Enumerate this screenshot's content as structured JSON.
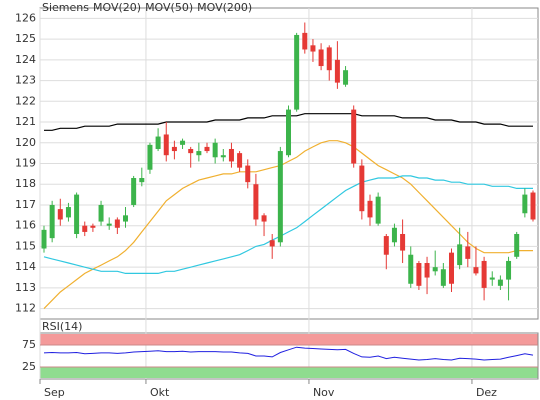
{
  "chart_data": [
    {
      "type": "candlestick",
      "categories": [
        "Sep",
        null,
        null,
        null,
        null,
        null,
        null,
        null,
        null,
        null,
        null,
        null,
        null,
        "Okt",
        null,
        null,
        null,
        null,
        null,
        null,
        null,
        null,
        null,
        null,
        null,
        null,
        null,
        null,
        null,
        null,
        null,
        null,
        null,
        "Nov",
        null,
        null,
        null,
        null,
        null,
        null,
        null,
        null,
        null,
        null,
        null,
        null,
        null,
        null,
        null,
        null,
        null,
        null,
        null,
        "Dez",
        null,
        null,
        null,
        null,
        null,
        null,
        null
      ],
      "name": "Siemens",
      "color": "#e05a5a",
      "up_color": "#3cb44b",
      "down_color": "#e53935",
      "open": [
        114.9,
        115.4,
        116.8,
        116.4,
        115.6,
        116.0,
        116.0,
        116.2,
        116.0,
        116.3,
        116.2,
        117.0,
        118.1,
        118.7,
        119.7,
        120.4,
        119.8,
        119.9,
        119.7,
        119.4,
        119.8,
        119.3,
        119.3,
        119.7,
        119.5,
        118.9,
        118.0,
        116.5,
        115.3,
        115.2,
        119.4,
        121.6,
        125.3,
        124.7,
        124.5,
        124.6,
        124.0,
        122.8,
        121.6,
        118.9,
        117.2,
        116.1,
        115.5,
        115.2,
        115.6,
        113.2,
        114.2,
        114.2,
        113.8,
        113.1,
        114.7,
        114.1,
        115.0,
        114.0,
        114.3,
        113.4,
        113.1,
        113.4,
        114.5,
        116.6,
        117.6
      ],
      "high": [
        116.0,
        117.2,
        117.3,
        117.1,
        117.6,
        116.2,
        116.1,
        117.2,
        116.4,
        116.4,
        116.9,
        118.4,
        118.8,
        120.0,
        120.7,
        121.0,
        120.1,
        120.2,
        119.8,
        120.0,
        120.0,
        120.2,
        119.7,
        120.0,
        119.6,
        119.2,
        118.5,
        116.6,
        115.6,
        119.8,
        121.8,
        125.3,
        125.8,
        125.0,
        124.8,
        124.7,
        124.9,
        123.7,
        121.8,
        119.2,
        117.5,
        117.6,
        115.6,
        116.1,
        116.3,
        115.0,
        114.3,
        114.5,
        114.8,
        114.2,
        114.9,
        115.9,
        115.7,
        115.0,
        114.5,
        113.8,
        113.6,
        114.5,
        115.7,
        117.8,
        117.7
      ],
      "low": [
        114.7,
        115.2,
        116.0,
        116.2,
        115.4,
        115.5,
        115.7,
        116.0,
        115.8,
        115.6,
        115.9,
        116.9,
        117.9,
        118.5,
        119.6,
        119.1,
        119.2,
        119.7,
        118.8,
        119.1,
        119.5,
        119.0,
        119.1,
        118.8,
        118.6,
        117.8,
        116.0,
        115.5,
        114.4,
        115.0,
        119.3,
        121.5,
        124.3,
        123.9,
        123.5,
        123.0,
        122.6,
        122.7,
        118.8,
        116.3,
        116.0,
        116.0,
        113.9,
        115.0,
        114.2,
        113.0,
        112.9,
        112.7,
        113.6,
        113.0,
        112.8,
        113.9,
        114.0,
        113.6,
        112.4,
        113.1,
        112.9,
        112.4,
        114.4,
        116.4,
        116.2
      ],
      "close": [
        115.8,
        117.0,
        116.3,
        116.9,
        117.5,
        115.7,
        115.9,
        117.0,
        116.1,
        115.9,
        116.5,
        118.3,
        118.3,
        119.9,
        120.3,
        119.4,
        119.6,
        120.1,
        119.5,
        119.6,
        119.6,
        120.0,
        119.4,
        119.1,
        118.8,
        118.1,
        116.3,
        116.2,
        115.0,
        119.6,
        121.6,
        125.2,
        124.5,
        124.4,
        123.7,
        123.5,
        122.9,
        123.5,
        119.0,
        116.7,
        116.4,
        117.4,
        114.6,
        115.9,
        114.8,
        114.6,
        113.1,
        113.5,
        114.0,
        113.9,
        113.2,
        115.1,
        114.4,
        113.7,
        113.0,
        113.5,
        113.4,
        114.3,
        115.6,
        117.5,
        116.3
      ],
      "lines": [
        {
          "name": "MOV(20)",
          "color": "#f0b030",
          "values": [
            112.0,
            112.4,
            112.8,
            113.1,
            113.4,
            113.7,
            113.9,
            114.1,
            114.3,
            114.5,
            114.8,
            115.2,
            115.7,
            116.2,
            116.7,
            117.2,
            117.5,
            117.8,
            118.0,
            118.2,
            118.3,
            118.4,
            118.5,
            118.5,
            118.6,
            118.6,
            118.6,
            118.7,
            118.8,
            118.9,
            119.1,
            119.3,
            119.6,
            119.8,
            120.0,
            120.1,
            120.1,
            120.0,
            119.8,
            119.5,
            119.2,
            118.9,
            118.7,
            118.5,
            118.3,
            118.0,
            117.6,
            117.2,
            116.8,
            116.4,
            116.0,
            115.6,
            115.2,
            114.9,
            114.7,
            114.7,
            114.7,
            114.7,
            114.8,
            114.8,
            114.8
          ]
        },
        {
          "name": "MOV(50)",
          "color": "#30c8e0",
          "values": [
            114.5,
            114.4,
            114.3,
            114.2,
            114.1,
            114.0,
            113.9,
            113.8,
            113.8,
            113.8,
            113.7,
            113.7,
            113.7,
            113.7,
            113.7,
            113.8,
            113.8,
            113.9,
            114.0,
            114.1,
            114.2,
            114.3,
            114.4,
            114.5,
            114.6,
            114.8,
            115.0,
            115.1,
            115.3,
            115.5,
            115.7,
            115.9,
            116.2,
            116.5,
            116.8,
            117.1,
            117.4,
            117.7,
            117.9,
            118.1,
            118.2,
            118.3,
            118.3,
            118.3,
            118.4,
            118.4,
            118.3,
            118.3,
            118.2,
            118.2,
            118.1,
            118.1,
            118.0,
            118.0,
            118.0,
            117.9,
            117.9,
            117.9,
            117.8,
            117.8,
            117.8
          ]
        },
        {
          "name": "MOV(200)",
          "color": "#000000",
          "values": [
            120.6,
            120.6,
            120.7,
            120.7,
            120.7,
            120.8,
            120.8,
            120.8,
            120.8,
            120.9,
            120.9,
            120.9,
            120.9,
            120.9,
            120.9,
            121.0,
            121.0,
            121.0,
            121.0,
            121.0,
            121.0,
            121.1,
            121.1,
            121.1,
            121.1,
            121.2,
            121.2,
            121.2,
            121.3,
            121.3,
            121.3,
            121.3,
            121.4,
            121.4,
            121.4,
            121.4,
            121.4,
            121.4,
            121.4,
            121.3,
            121.3,
            121.3,
            121.3,
            121.3,
            121.2,
            121.2,
            121.2,
            121.2,
            121.1,
            121.1,
            121.1,
            121.0,
            121.0,
            121.0,
            120.9,
            120.9,
            120.9,
            120.8,
            120.8,
            120.8,
            120.8
          ]
        }
      ],
      "ylim": [
        111.5,
        126.5
      ],
      "yticks": [
        112,
        113,
        114,
        115,
        116,
        117,
        118,
        119,
        120,
        121,
        122,
        123,
        124,
        125,
        126
      ],
      "grid": true
    },
    {
      "type": "line",
      "title": "RSI(14)",
      "color": "#2020e0",
      "upper_band_color": "#f49a9a",
      "lower_band_color": "#8fdc8f",
      "values": [
        57,
        58,
        57,
        57,
        58,
        55,
        56,
        57,
        57,
        56,
        57,
        59,
        60,
        61,
        62,
        60,
        60,
        61,
        59,
        60,
        60,
        60,
        59,
        59,
        57,
        56,
        50,
        50,
        48,
        58,
        64,
        70,
        68,
        67,
        66,
        65,
        64,
        65,
        56,
        48,
        47,
        50,
        44,
        47,
        45,
        43,
        41,
        42,
        44,
        42,
        41,
        45,
        44,
        43,
        41,
        42,
        43,
        47,
        51,
        55,
        52
      ],
      "ylim": [
        0,
        100
      ],
      "yticks": [
        25,
        75
      ]
    }
  ]
}
